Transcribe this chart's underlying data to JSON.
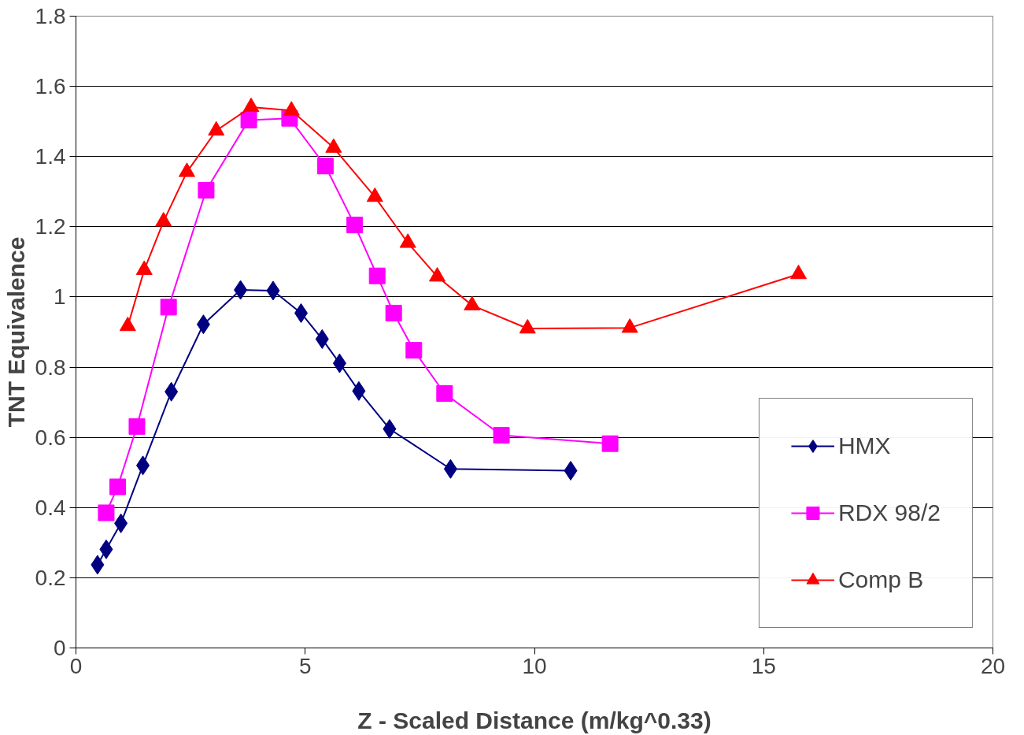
{
  "chart_data": {
    "type": "line",
    "xlabel": "Z - Scaled Distance (m/kg^0.33)",
    "ylabel": "TNT Equivalence",
    "xlim": [
      0,
      20
    ],
    "xticks": [
      0,
      5,
      10,
      15,
      20
    ],
    "ylim": [
      0,
      1.8
    ],
    "yticks": [
      0,
      0.2,
      0.4,
      0.6,
      0.8,
      1,
      1.2,
      1.4,
      1.6,
      1.8
    ],
    "grid": "y",
    "legend": "bottom right",
    "line_style": "solid",
    "series": [
      {
        "name": "HMX",
        "color": "#000080",
        "marker": "diamond",
        "x": [
          0.47,
          0.66,
          0.98,
          1.46,
          2.08,
          2.78,
          3.59,
          4.3,
          4.91,
          5.37,
          5.75,
          6.17,
          6.84,
          8.17,
          10.79
        ],
        "values": [
          0.237,
          0.281,
          0.355,
          0.52,
          0.73,
          0.922,
          1.02,
          1.018,
          0.954,
          0.88,
          0.811,
          0.732,
          0.624,
          0.51,
          0.505
        ]
      },
      {
        "name": "RDX 98/2",
        "color": "#ff00ff",
        "marker": "square",
        "x": [
          0.66,
          0.91,
          1.33,
          2.02,
          2.84,
          3.77,
          4.66,
          5.44,
          6.08,
          6.57,
          6.93,
          7.37,
          8.04,
          9.28,
          11.65
        ],
        "values": [
          0.385,
          0.459,
          0.631,
          0.971,
          1.304,
          1.504,
          1.509,
          1.373,
          1.205,
          1.06,
          0.954,
          0.848,
          0.725,
          0.606,
          0.582
        ]
      },
      {
        "name": "Comp B",
        "color": "#ff0000",
        "marker": "triangle",
        "x": [
          1.13,
          1.49,
          1.91,
          2.42,
          3.06,
          3.82,
          4.7,
          5.62,
          6.52,
          7.24,
          7.88,
          8.64,
          9.85,
          12.08,
          15.76
        ],
        "values": [
          0.917,
          1.077,
          1.215,
          1.356,
          1.474,
          1.541,
          1.531,
          1.425,
          1.285,
          1.154,
          1.058,
          0.976,
          0.91,
          0.912,
          1.065
        ]
      }
    ]
  }
}
